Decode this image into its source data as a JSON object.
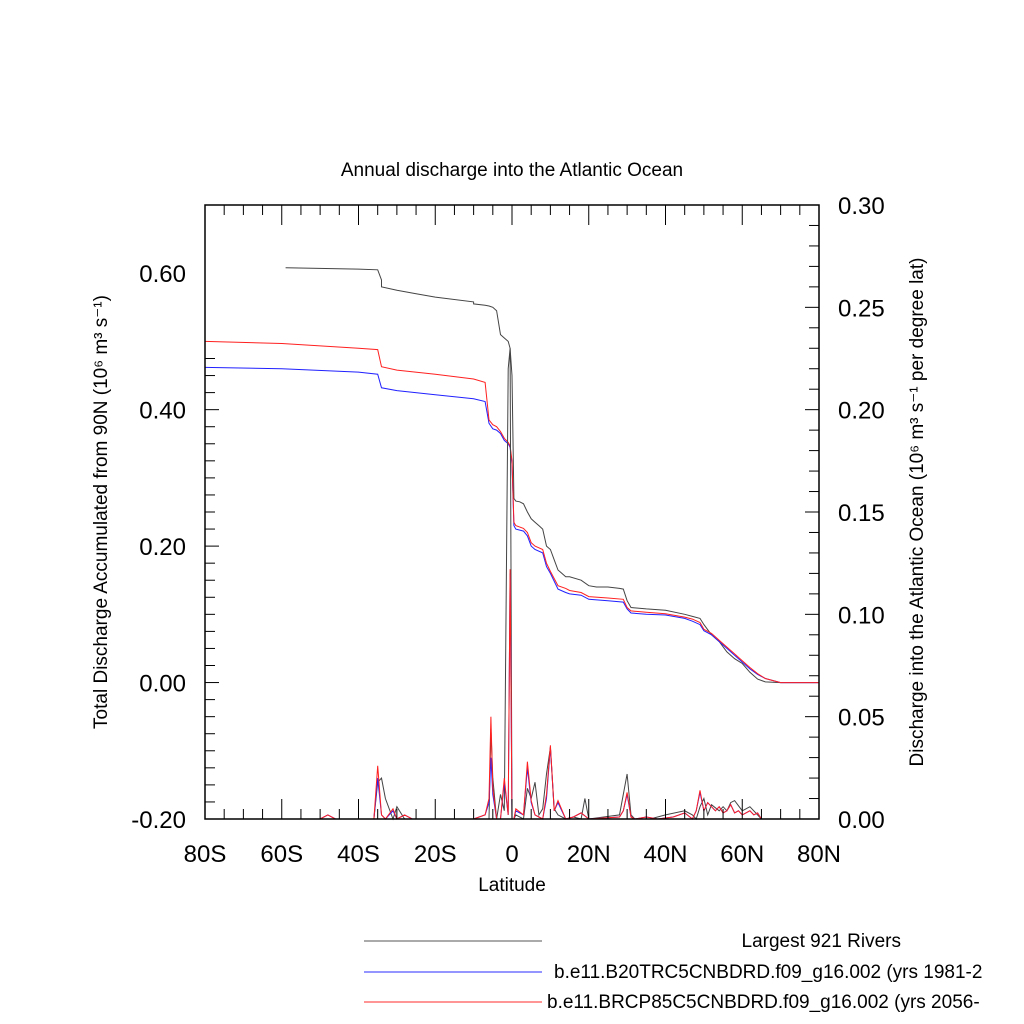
{
  "chart_data": {
    "type": "line",
    "title": "Annual discharge into the Atlantic Ocean",
    "xlabel": "Latitude",
    "ylabel_left": "Total Discharge Accumulated from 90N (10⁶ m³ s⁻¹)",
    "ylabel_right": "Discharge into the Atlantic Ocean (10⁶ m³ s⁻¹ per degree lat)",
    "xlim": [
      -80,
      80
    ],
    "ylim_left": [
      -0.2,
      0.7
    ],
    "ylim_right": [
      0.0,
      0.3
    ],
    "x_ticks": [
      {
        "value": -80,
        "label": "80S"
      },
      {
        "value": -60,
        "label": "60S"
      },
      {
        "value": -40,
        "label": "40S"
      },
      {
        "value": -20,
        "label": "20S"
      },
      {
        "value": 0,
        "label": "0"
      },
      {
        "value": 20,
        "label": "20N"
      },
      {
        "value": 40,
        "label": "40N"
      },
      {
        "value": 60,
        "label": "60N"
      },
      {
        "value": 80,
        "label": "80N"
      }
    ],
    "y_left_ticks": [
      {
        "value": 0.6,
        "label": "0.60"
      },
      {
        "value": 0.4,
        "label": "0.40"
      },
      {
        "value": 0.2,
        "label": "0.20"
      },
      {
        "value": 0.0,
        "label": "0.00"
      },
      {
        "value": -0.2,
        "label": "-0.20"
      }
    ],
    "y_right_ticks": [
      {
        "value": 0.3,
        "label": "0.30"
      },
      {
        "value": 0.25,
        "label": "0.25"
      },
      {
        "value": 0.2,
        "label": "0.20"
      },
      {
        "value": 0.15,
        "label": "0.15"
      },
      {
        "value": 0.1,
        "label": "0.10"
      },
      {
        "value": 0.05,
        "label": "0.05"
      },
      {
        "value": 0.0,
        "label": "0.00"
      }
    ],
    "legend": [
      {
        "label": "Largest 921 Rivers",
        "color": "#555555"
      },
      {
        "label": "b.e11.B20TRC5CNBDRD.f09_g16.002 (yrs 1981-2",
        "color": "#2b2bff"
      },
      {
        "label": "b.e11.BRCP85C5CNBDRD.f09_g16.002 (yrs 2056-",
        "color": "#ff2b2b"
      }
    ],
    "series_accumulated": [
      {
        "name": "Largest 921 Rivers",
        "color": "#444444",
        "x": [
          -59,
          -40,
          -35,
          -34,
          -34,
          -30,
          -25,
          -20,
          -10,
          -10,
          -7,
          -6,
          -5,
          -4,
          -3,
          -2,
          -1,
          -0.5,
          0,
          0.5,
          1,
          2,
          3,
          4,
          5,
          6,
          7,
          8,
          9,
          10,
          11,
          12,
          13,
          14,
          15,
          18,
          20,
          22,
          25,
          28,
          29,
          30,
          31,
          35,
          40,
          45,
          47,
          49,
          50,
          52,
          54,
          56,
          58,
          60,
          62,
          64,
          66,
          70,
          80
        ],
        "y": [
          0.608,
          0.606,
          0.605,
          0.59,
          0.58,
          0.575,
          0.57,
          0.565,
          0.558,
          0.555,
          0.553,
          0.552,
          0.55,
          0.545,
          0.51,
          0.505,
          0.5,
          0.49,
          0.45,
          0.27,
          0.266,
          0.265,
          0.262,
          0.25,
          0.24,
          0.235,
          0.23,
          0.225,
          0.2,
          0.195,
          0.18,
          0.165,
          0.16,
          0.155,
          0.155,
          0.15,
          0.142,
          0.14,
          0.14,
          0.138,
          0.137,
          0.12,
          0.11,
          0.108,
          0.106,
          0.1,
          0.097,
          0.094,
          0.085,
          0.07,
          0.06,
          0.045,
          0.035,
          0.028,
          0.015,
          0.005,
          0.001,
          0.0,
          0.0
        ]
      },
      {
        "name": "b.e11.B20TRC5CNBDRD.f09_g16.002 (yrs 1981-2",
        "color": "#2020ff",
        "x": [
          -80,
          -60,
          -40,
          -35,
          -34,
          -30,
          -20,
          -10,
          -7,
          -6,
          -5,
          -4,
          -3,
          -2,
          -1,
          -0.5,
          0,
          0.5,
          1,
          3,
          4,
          5,
          6,
          8,
          9,
          10,
          12,
          14,
          15,
          18,
          20,
          25,
          29,
          30,
          31,
          35,
          40,
          45,
          47,
          49,
          50,
          52,
          55,
          58,
          60,
          62,
          64,
          66,
          70,
          80
        ],
        "y": [
          0.462,
          0.46,
          0.455,
          0.452,
          0.432,
          0.428,
          0.422,
          0.416,
          0.412,
          0.38,
          0.372,
          0.37,
          0.365,
          0.355,
          0.35,
          0.345,
          0.32,
          0.23,
          0.225,
          0.222,
          0.215,
          0.2,
          0.195,
          0.19,
          0.17,
          0.16,
          0.137,
          0.132,
          0.13,
          0.128,
          0.122,
          0.12,
          0.118,
          0.108,
          0.102,
          0.1,
          0.099,
          0.094,
          0.09,
          0.085,
          0.076,
          0.07,
          0.055,
          0.04,
          0.03,
          0.02,
          0.012,
          0.006,
          0.0,
          0.0
        ]
      },
      {
        "name": "b.e11.BRCP85C5CNBDRD.f09_g16.002 (yrs 2056-",
        "color": "#ff2020",
        "x": [
          -80,
          -60,
          -40,
          -35,
          -34,
          -30,
          -20,
          -10,
          -7,
          -6,
          -5,
          -4,
          -3,
          -2,
          -1,
          -0.5,
          0,
          0.5,
          1,
          3,
          4,
          5,
          6,
          8,
          9,
          10,
          12,
          14,
          15,
          18,
          20,
          25,
          29,
          30,
          31,
          35,
          40,
          45,
          47,
          49,
          50,
          52,
          55,
          58,
          60,
          62,
          64,
          66,
          70,
          80
        ],
        "y": [
          0.5,
          0.497,
          0.49,
          0.488,
          0.463,
          0.458,
          0.452,
          0.445,
          0.44,
          0.385,
          0.378,
          0.375,
          0.368,
          0.358,
          0.352,
          0.347,
          0.325,
          0.235,
          0.23,
          0.226,
          0.22,
          0.205,
          0.2,
          0.195,
          0.175,
          0.163,
          0.142,
          0.138,
          0.135,
          0.132,
          0.126,
          0.124,
          0.122,
          0.11,
          0.105,
          0.103,
          0.101,
          0.096,
          0.093,
          0.088,
          0.078,
          0.072,
          0.057,
          0.042,
          0.032,
          0.022,
          0.013,
          0.006,
          0.0,
          0.0
        ]
      }
    ],
    "series_per_degree": [
      {
        "name": "Largest 921 Rivers",
        "color": "#444444",
        "x": [
          -80,
          -36,
          -35,
          -34,
          -33,
          -31,
          -30,
          -28,
          -10,
          -6,
          -5.5,
          -5,
          -4,
          -3,
          -2,
          -1,
          -0.5,
          0,
          0.5,
          1,
          3,
          4,
          5,
          6,
          7,
          8,
          9,
          10,
          11,
          12,
          14,
          16,
          18,
          19,
          20,
          28,
          30,
          31,
          32,
          36,
          40,
          45,
          47,
          48,
          49,
          50,
          51,
          52,
          54,
          55,
          56,
          57,
          58,
          60,
          62,
          64,
          65,
          66,
          80
        ],
        "y": [
          0.0,
          0.0,
          0.018,
          0.02,
          0.01,
          0.0,
          0.006,
          0.0,
          0.0,
          0.0,
          0.044,
          0.02,
          0.0,
          0.012,
          0.004,
          0.22,
          0.23,
          0.0,
          0.0,
          0.002,
          0.0,
          0.015,
          0.01,
          0.018,
          0.002,
          0.005,
          0.022,
          0.035,
          0.005,
          0.002,
          0.0,
          0.001,
          0.0,
          0.01,
          0.0,
          0.002,
          0.022,
          0.002,
          0.0,
          0.0,
          0.002,
          0.004,
          0.002,
          0.0,
          0.006,
          0.01,
          0.002,
          0.007,
          0.004,
          0.006,
          0.004,
          0.008,
          0.009,
          0.004,
          0.006,
          0.002,
          0.0,
          0.0,
          0.0
        ]
      },
      {
        "name": "b.e11.B20TRC5CNBDRD.f09_g16.002 (yrs 1981-2",
        "color": "#2020ff",
        "x": [
          -80,
          -50,
          -48,
          -46,
          -38,
          -36,
          -35,
          -34,
          -33,
          -31,
          -30,
          -28,
          -26,
          -20,
          -10,
          -7,
          -6,
          -5.5,
          -5,
          -4,
          -3,
          -2,
          -1,
          -0.5,
          0,
          0.5,
          1,
          3,
          4,
          5,
          6,
          7,
          8,
          9,
          10,
          11,
          12,
          14,
          16,
          18,
          20,
          28,
          29,
          30,
          31,
          32,
          35,
          38,
          42,
          45,
          47,
          48,
          49,
          50,
          51,
          52,
          53,
          54,
          55,
          56,
          57,
          58,
          59,
          60,
          62,
          63,
          64,
          65,
          66,
          80
        ],
        "y": [
          0.0,
          0.0,
          0.002,
          0.0,
          0.0,
          0.0,
          0.02,
          0.002,
          0.0,
          0.004,
          0.0,
          0.002,
          0.0,
          0.0,
          0.0,
          0.002,
          0.008,
          0.03,
          0.012,
          0.0,
          0.0,
          0.018,
          0.002,
          0.12,
          0.0,
          0.0,
          0.004,
          0.002,
          0.025,
          0.008,
          0.002,
          0.001,
          0.0,
          0.01,
          0.035,
          0.004,
          0.008,
          0.0,
          0.001,
          0.003,
          0.0,
          0.001,
          0.004,
          0.012,
          0.001,
          0.0,
          0.001,
          0.0,
          0.001,
          0.003,
          0.0,
          0.004,
          0.013,
          0.004,
          0.008,
          0.006,
          0.004,
          0.006,
          0.003,
          0.004,
          0.007,
          0.003,
          0.004,
          0.002,
          0.004,
          0.002,
          0.003,
          0.0,
          0.0,
          0.0
        ]
      },
      {
        "name": "b.e11.BRCP85C5CNBDRD.f09_g16.002 (yrs 2056-",
        "color": "#ff2020",
        "x": [
          -80,
          -50,
          -48,
          -46,
          -38,
          -36,
          -35,
          -34,
          -33,
          -31,
          -30,
          -28,
          -26,
          -20,
          -10,
          -7,
          -6,
          -5.5,
          -5,
          -4,
          -3,
          -2,
          -1,
          -0.5,
          0,
          0.5,
          1,
          3,
          4,
          5,
          6,
          7,
          8,
          9,
          10,
          11,
          12,
          14,
          16,
          18,
          20,
          28,
          29,
          30,
          31,
          32,
          35,
          38,
          42,
          45,
          47,
          48,
          49,
          50,
          51,
          52,
          53,
          54,
          55,
          56,
          57,
          58,
          59,
          60,
          62,
          63,
          64,
          65,
          66,
          80
        ],
        "y": [
          0.0,
          0.0,
          0.002,
          0.0,
          0.0,
          0.0,
          0.026,
          0.002,
          0.0,
          0.005,
          0.0,
          0.002,
          0.0,
          0.0,
          0.0,
          0.002,
          0.01,
          0.05,
          0.015,
          0.0,
          0.0,
          0.02,
          0.002,
          0.122,
          0.0,
          0.0,
          0.005,
          0.002,
          0.028,
          0.009,
          0.002,
          0.001,
          0.0,
          0.012,
          0.036,
          0.004,
          0.009,
          0.0,
          0.001,
          0.003,
          0.0,
          0.001,
          0.004,
          0.013,
          0.001,
          0.0,
          0.001,
          0.0,
          0.001,
          0.003,
          0.0,
          0.004,
          0.014,
          0.004,
          0.008,
          0.006,
          0.004,
          0.006,
          0.003,
          0.004,
          0.007,
          0.003,
          0.004,
          0.002,
          0.004,
          0.002,
          0.003,
          0.0,
          0.0,
          0.0
        ]
      }
    ]
  }
}
